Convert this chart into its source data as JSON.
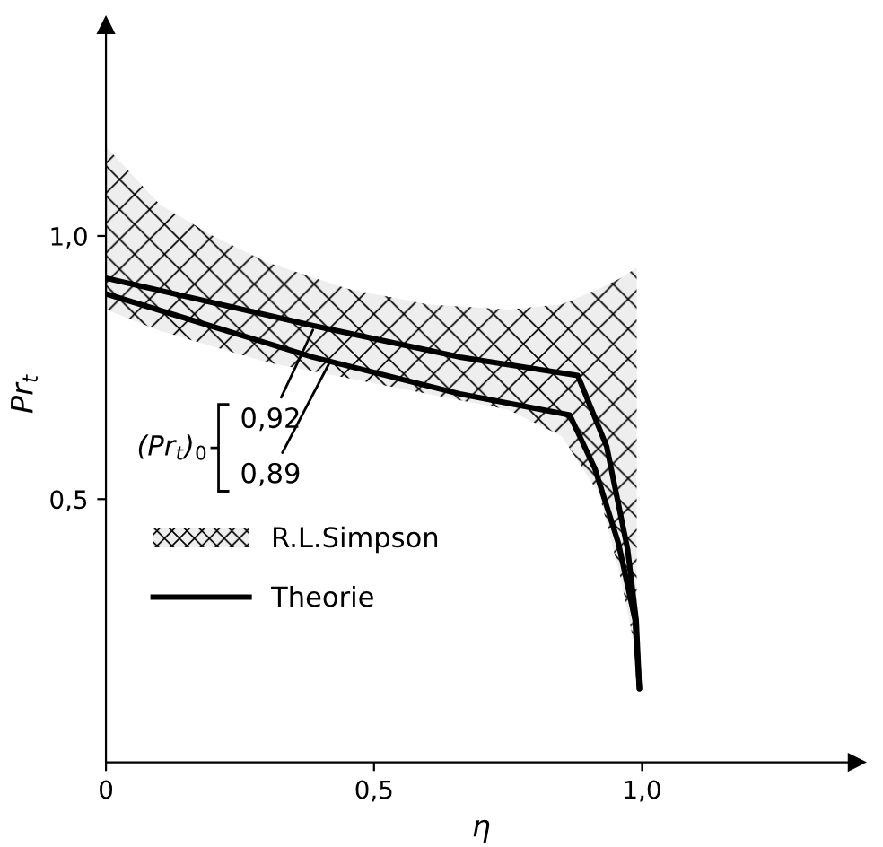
{
  "chart_data": {
    "type": "line",
    "xlabel": "η",
    "ylabel": "Pr$_{t}$",
    "xlim": [
      0,
      1.4
    ],
    "ylim": [
      0,
      1.4
    ],
    "xticks": [
      {
        "value": 0,
        "label": "0"
      },
      {
        "value": 0.5,
        "label": "0,5"
      },
      {
        "value": 1.0,
        "label": "1,0"
      }
    ],
    "yticks": [
      {
        "value": 0.5,
        "label": "0,5"
      },
      {
        "value": 1.0,
        "label": "1,0"
      }
    ],
    "grid": false,
    "legend": "bottom left",
    "marker": "none",
    "line_style": "solid",
    "series": [
      {
        "name": "R.L.Simpson",
        "type": "area",
        "color": "#000000",
        "x": [
          0,
          0.1,
          0.2,
          0.3,
          0.45,
          0.6,
          0.75,
          0.85,
          0.92,
          0.96,
          0.99
        ],
        "values": [
          null,
          null,
          null,
          null,
          null,
          null,
          null,
          null,
          null,
          null,
          null
        ],
        "upper": [
          1.17,
          1.06,
          1.0,
          0.95,
          0.9,
          0.87,
          0.86,
          0.87,
          0.9,
          0.92,
          0.94
        ],
        "lower": [
          0.86,
          0.82,
          0.79,
          0.76,
          0.73,
          0.7,
          0.67,
          0.62,
          0.51,
          0.35,
          0.2
        ]
      },
      {
        "name": "Theorie",
        "type": "line",
        "color": "#000000",
        "x": [
          0,
          0.385,
          0.66,
          0.88,
          0.934,
          0.973,
          0.989,
          0.995
        ],
        "values": [
          0.92,
          0.83,
          0.77,
          0.735,
          0.6,
          0.405,
          0.27,
          0.14
        ]
      },
      {
        "type": "line",
        "color": "#000000",
        "x": [
          0,
          0.385,
          0.66,
          0.865,
          0.912,
          0.956,
          0.987,
          0.995
        ],
        "values": [
          0.89,
          0.77,
          0.7,
          0.66,
          0.558,
          0.416,
          0.27,
          0.14
        ]
      }
    ],
    "annotations": [
      "(Pr$_{t}$)$_{0}$",
      {
        "text": "0,92",
        "x": 0.39,
        "y": 0.83
      },
      {
        "text": "0,89",
        "x": 0.42,
        "y": 0.765
      }
    ]
  }
}
